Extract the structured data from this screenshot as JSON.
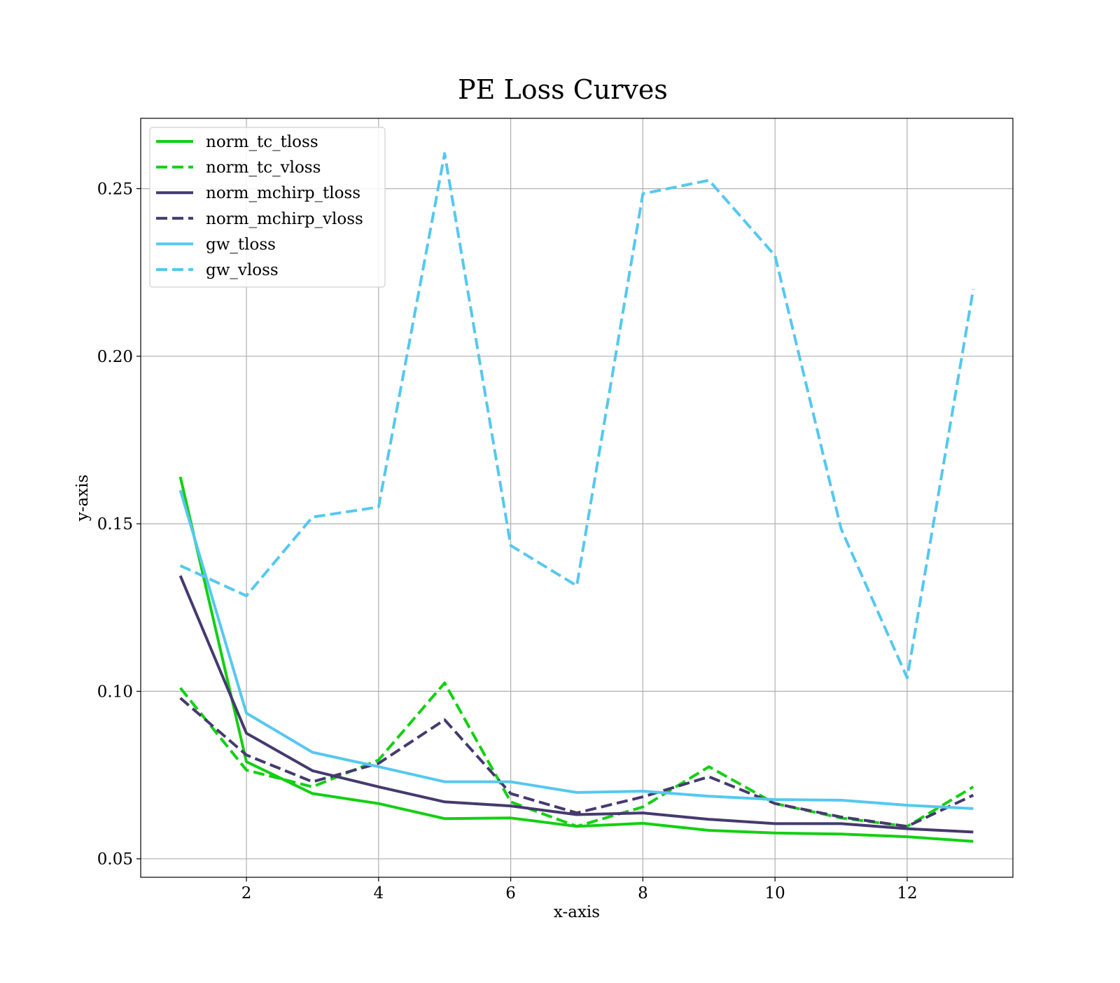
{
  "chart_data": {
    "type": "line",
    "title": "PE Loss Curves",
    "xlabel": "x-axis",
    "ylabel": "y-axis",
    "xlim": [
      0.4,
      13.6
    ],
    "ylim": [
      0.0445,
      0.271
    ],
    "xticks": [
      2,
      4,
      6,
      8,
      10,
      12
    ],
    "yticks": [
      0.05,
      0.1,
      0.15,
      0.2,
      0.25
    ],
    "xtick_labels": [
      "2",
      "4",
      "6",
      "8",
      "10",
      "12"
    ],
    "ytick_labels": [
      "0.05",
      "0.10",
      "0.15",
      "0.20",
      "0.25"
    ],
    "grid": true,
    "legend_position": "top-left",
    "x": [
      1,
      2,
      3,
      4,
      5,
      6,
      7,
      8,
      9,
      10,
      11,
      12,
      13
    ],
    "series": [
      {
        "name": "norm_tc_tloss",
        "color": "#12d012",
        "style": "solid",
        "values": [
          0.164,
          0.079,
          0.0695,
          0.0665,
          0.062,
          0.0622,
          0.0597,
          0.0606,
          0.0585,
          0.0577,
          0.0574,
          0.0566,
          0.0552
        ]
      },
      {
        "name": "norm_tc_vloss",
        "color": "#12d012",
        "style": "dashed",
        "values": [
          0.101,
          0.0765,
          0.0715,
          0.0795,
          0.1025,
          0.067,
          0.0597,
          0.0655,
          0.0775,
          0.0665,
          0.0622,
          0.0597,
          0.0715
        ]
      },
      {
        "name": "norm_mchirp_tloss",
        "color": "#453a6e",
        "style": "solid",
        "values": [
          0.1345,
          0.0875,
          0.0763,
          0.0715,
          0.067,
          0.0658,
          0.0632,
          0.0637,
          0.0618,
          0.0605,
          0.0605,
          0.059,
          0.058
        ]
      },
      {
        "name": "norm_mchirp_vloss",
        "color": "#453a6e",
        "style": "dashed",
        "values": [
          0.098,
          0.081,
          0.073,
          0.0785,
          0.0915,
          0.0695,
          0.0637,
          0.0685,
          0.0745,
          0.0665,
          0.0625,
          0.0597,
          0.069
        ]
      },
      {
        "name": "gw_tloss",
        "color": "#55c8f0",
        "style": "solid",
        "values": [
          0.16,
          0.0935,
          0.0818,
          0.0775,
          0.073,
          0.073,
          0.0698,
          0.0702,
          0.0687,
          0.0677,
          0.0675,
          0.066,
          0.065
        ]
      },
      {
        "name": "gw_vloss",
        "color": "#55c8f0",
        "style": "dashed",
        "values": [
          0.1375,
          0.1285,
          0.152,
          0.155,
          0.2605,
          0.1435,
          0.1315,
          0.2485,
          0.2525,
          0.23,
          0.1485,
          0.104,
          0.22
        ]
      }
    ]
  }
}
